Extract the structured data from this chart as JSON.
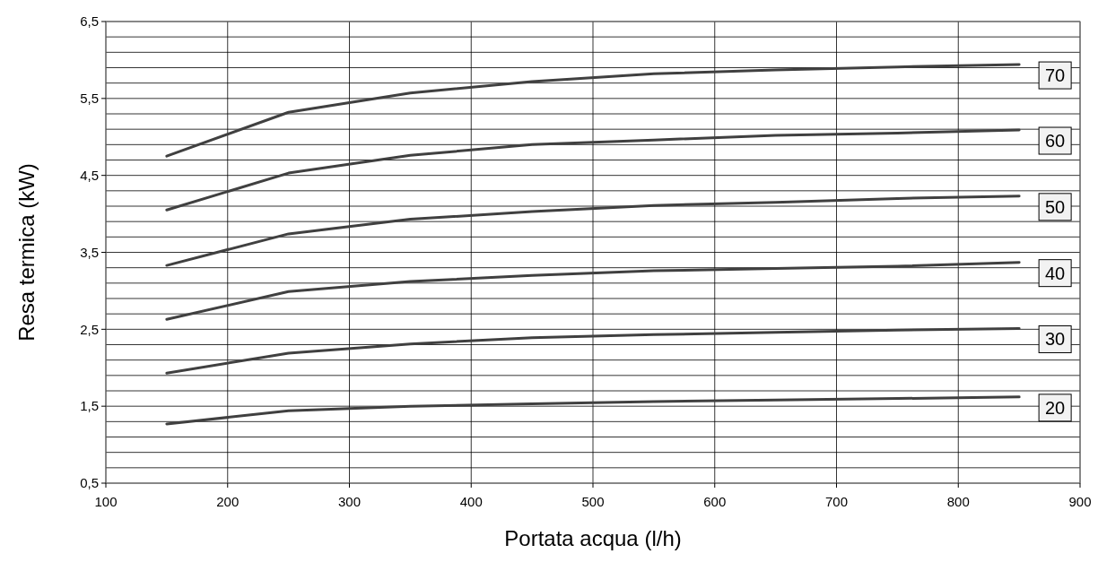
{
  "chart_data": {
    "type": "line",
    "xlabel": "Portata acqua (l/h)",
    "ylabel": "Resa termica (kW)",
    "x": [
      150,
      250,
      350,
      450,
      550,
      650,
      750,
      850
    ],
    "xlim": [
      100,
      900
    ],
    "xticks": [
      100,
      200,
      300,
      400,
      500,
      600,
      700,
      800,
      900
    ],
    "ylim": [
      0.5,
      6.5
    ],
    "yticks": [
      {
        "value": 0.5,
        "label": "0,5"
      },
      {
        "value": 0.7,
        "label": null
      },
      {
        "value": 0.9,
        "label": null
      },
      {
        "value": 1.1,
        "label": null
      },
      {
        "value": 1.3,
        "label": null
      },
      {
        "value": 1.5,
        "label": "1,5"
      },
      {
        "value": 1.7,
        "label": null
      },
      {
        "value": 1.9,
        "label": null
      },
      {
        "value": 2.1,
        "label": null
      },
      {
        "value": 2.3,
        "label": null
      },
      {
        "value": 2.5,
        "label": "2,5"
      },
      {
        "value": 2.7,
        "label": null
      },
      {
        "value": 2.9,
        "label": null
      },
      {
        "value": 3.1,
        "label": null
      },
      {
        "value": 3.3,
        "label": null
      },
      {
        "value": 3.5,
        "label": "3,5"
      },
      {
        "value": 3.7,
        "label": null
      },
      {
        "value": 3.9,
        "label": null
      },
      {
        "value": 4.1,
        "label": null
      },
      {
        "value": 4.3,
        "label": null
      },
      {
        "value": 4.5,
        "label": "4,5"
      },
      {
        "value": 4.7,
        "label": null
      },
      {
        "value": 4.9,
        "label": null
      },
      {
        "value": 5.1,
        "label": null
      },
      {
        "value": 5.3,
        "label": null
      },
      {
        "value": 5.5,
        "label": "5,5"
      },
      {
        "value": 5.7,
        "label": null
      },
      {
        "value": 5.9,
        "label": null
      },
      {
        "value": 6.1,
        "label": null
      },
      {
        "value": 6.3,
        "label": null
      },
      {
        "value": 6.5,
        "label": "6,5"
      }
    ],
    "grid": true,
    "marker": "none",
    "line_style": "solid",
    "series": [
      {
        "name": "70",
        "color": "#404040",
        "values": [
          4.75,
          5.32,
          5.57,
          5.72,
          5.82,
          5.87,
          5.91,
          5.94
        ]
      },
      {
        "name": "60",
        "color": "#404040",
        "values": [
          4.05,
          4.53,
          4.76,
          4.9,
          4.96,
          5.02,
          5.05,
          5.09
        ]
      },
      {
        "name": "50",
        "color": "#404040",
        "values": [
          3.33,
          3.74,
          3.93,
          4.03,
          4.11,
          4.15,
          4.2,
          4.23
        ]
      },
      {
        "name": "40",
        "color": "#404040",
        "values": [
          2.63,
          2.99,
          3.12,
          3.2,
          3.26,
          3.29,
          3.32,
          3.37
        ]
      },
      {
        "name": "30",
        "color": "#404040",
        "values": [
          1.93,
          2.19,
          2.31,
          2.39,
          2.43,
          2.46,
          2.49,
          2.51
        ]
      },
      {
        "name": "20",
        "color": "#404040",
        "values": [
          1.27,
          1.44,
          1.5,
          1.53,
          1.56,
          1.58,
          1.6,
          1.62
        ]
      }
    ]
  }
}
